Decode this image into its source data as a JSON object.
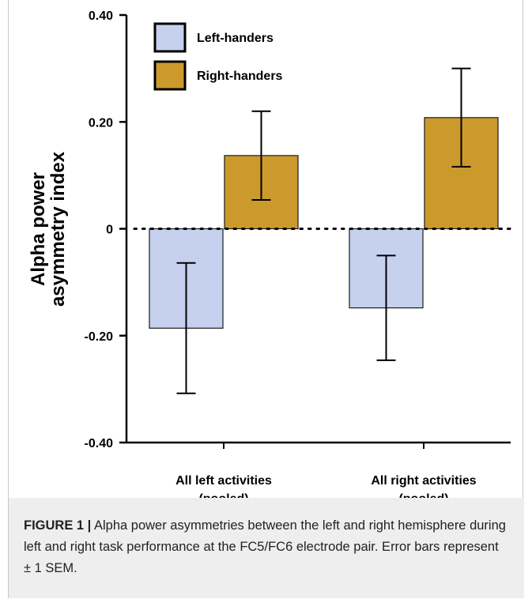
{
  "chart_data": {
    "type": "bar",
    "ylabel": "Alpha power asymmetry index",
    "ylabel_lines": [
      "Alpha power",
      "asymmetry index"
    ],
    "xlabel": "",
    "ylim": [
      -0.4,
      0.4
    ],
    "yticks": [
      0.4,
      0.2,
      0,
      -0.2,
      -0.4
    ],
    "ytick_labels": [
      "0.40",
      "0.20",
      "0",
      "-0.20",
      "-0.40"
    ],
    "categories": [
      "All left activities (pooled)",
      "All right activities (pooled)"
    ],
    "category_lines": [
      [
        "All left activities",
        "(pooled)"
      ],
      [
        "All right activities",
        "(pooled)"
      ]
    ],
    "reference_line": {
      "y": 0,
      "style": "dotted"
    },
    "legend_position": "top-left",
    "series": [
      {
        "name": "Left-handers",
        "color": "#c5d1ee",
        "values": [
          -0.186,
          -0.148
        ],
        "error": [
          0.122,
          0.098
        ]
      },
      {
        "name": "Right-handers",
        "color": "#cc9a2c",
        "values": [
          0.137,
          0.208
        ],
        "error": [
          0.083,
          0.092
        ]
      }
    ]
  },
  "caption": {
    "label": "FIGURE 1 |",
    "text": "Alpha power asymmetries between the left and right hemisphere during left and right task performance at the FC5/FC6 electrode pair. Error bars represent ± 1 SEM."
  }
}
